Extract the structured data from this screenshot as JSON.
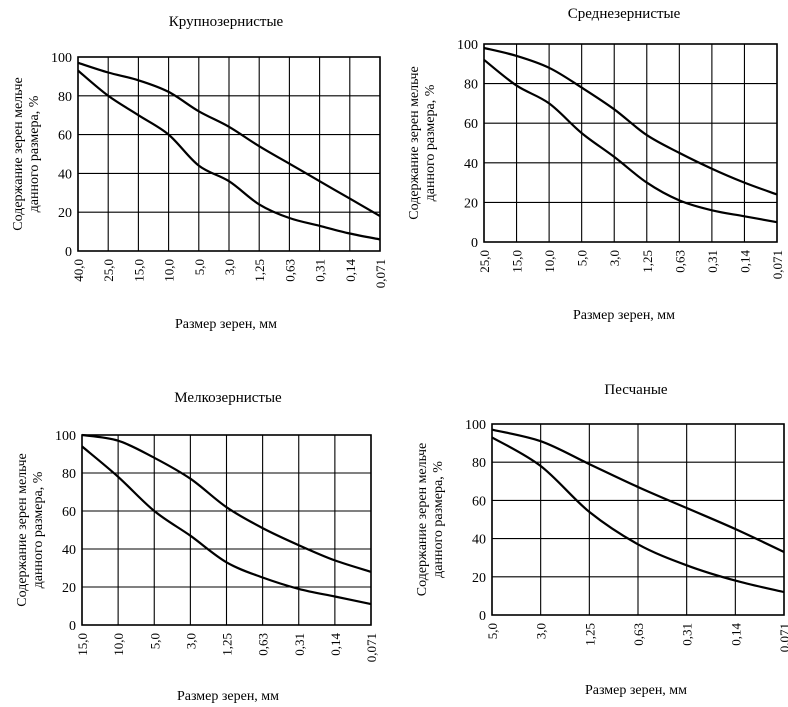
{
  "chart_data": [
    {
      "type": "line",
      "title": "Крупнозернистые",
      "ylabel_line1": "Содержание зерен мельче",
      "ylabel_line2": "данного размера, %",
      "xlabel": "Размер зерен, мм",
      "categories": [
        "40,0",
        "25,0",
        "15,0",
        "10,0",
        "5,0",
        "3,0",
        "1,25",
        "0,63",
        "0,31",
        "0,14",
        "0,071"
      ],
      "y_ticks": [
        "0",
        "20",
        "40",
        "60",
        "80",
        "100"
      ],
      "ylim": [
        0,
        100
      ],
      "grid": true,
      "series": [
        {
          "values": [
            97,
            92,
            88,
            82,
            72,
            64,
            54,
            45,
            36,
            27,
            18
          ]
        },
        {
          "values": [
            93,
            80,
            70,
            60,
            44,
            36,
            24,
            17,
            13,
            9,
            6
          ]
        }
      ]
    },
    {
      "type": "line",
      "title": "Среднезернистые",
      "ylabel_line1": "Содержание зерен мельче",
      "ylabel_line2": "данного размера, %",
      "xlabel": "Размер зерен, мм",
      "categories": [
        "25,0",
        "15,0",
        "10,0",
        "5,0",
        "3,0",
        "1,25",
        "0,63",
        "0,31",
        "0,14",
        "0,071"
      ],
      "y_ticks": [
        "0",
        "20",
        "40",
        "60",
        "80",
        "100"
      ],
      "ylim": [
        0,
        100
      ],
      "grid": true,
      "series": [
        {
          "values": [
            98,
            94,
            88,
            78,
            67,
            54,
            45,
            37,
            30,
            24
          ]
        },
        {
          "values": [
            92,
            79,
            70,
            55,
            43,
            30,
            21,
            16,
            13,
            10
          ]
        }
      ]
    },
    {
      "type": "line",
      "title": "Мелкозернистые",
      "ylabel_line1": "Содержание зерен мельче",
      "ylabel_line2": "данного размера, %",
      "xlabel": "Размер зерен, мм",
      "categories": [
        "15,0",
        "10,0",
        "5,0",
        "3,0",
        "1,25",
        "0,63",
        "0,31",
        "0,14",
        "0,071"
      ],
      "y_ticks": [
        "0",
        "20",
        "40",
        "60",
        "80",
        "100"
      ],
      "ylim": [
        0,
        100
      ],
      "grid": true,
      "series": [
        {
          "values": [
            100,
            97,
            88,
            77,
            62,
            51,
            42,
            34,
            28
          ]
        },
        {
          "values": [
            94,
            78,
            60,
            47,
            33,
            25,
            19,
            15,
            11
          ]
        }
      ]
    },
    {
      "type": "line",
      "title": "Песчаные",
      "ylabel_line1": "Содержание зерен мельче",
      "ylabel_line2": "данного размера, %",
      "xlabel": "Размер зерен, мм",
      "categories": [
        "5,0",
        "3,0",
        "1,25",
        "0,63",
        "0,31",
        "0,14",
        "0,071"
      ],
      "y_ticks": [
        "0",
        "20",
        "40",
        "60",
        "80",
        "100"
      ],
      "ylim": [
        0,
        100
      ],
      "grid": true,
      "series": [
        {
          "values": [
            97,
            91,
            79,
            67,
            56,
            45,
            33
          ]
        },
        {
          "values": [
            93,
            78,
            54,
            37,
            26,
            18,
            12
          ]
        }
      ]
    }
  ]
}
